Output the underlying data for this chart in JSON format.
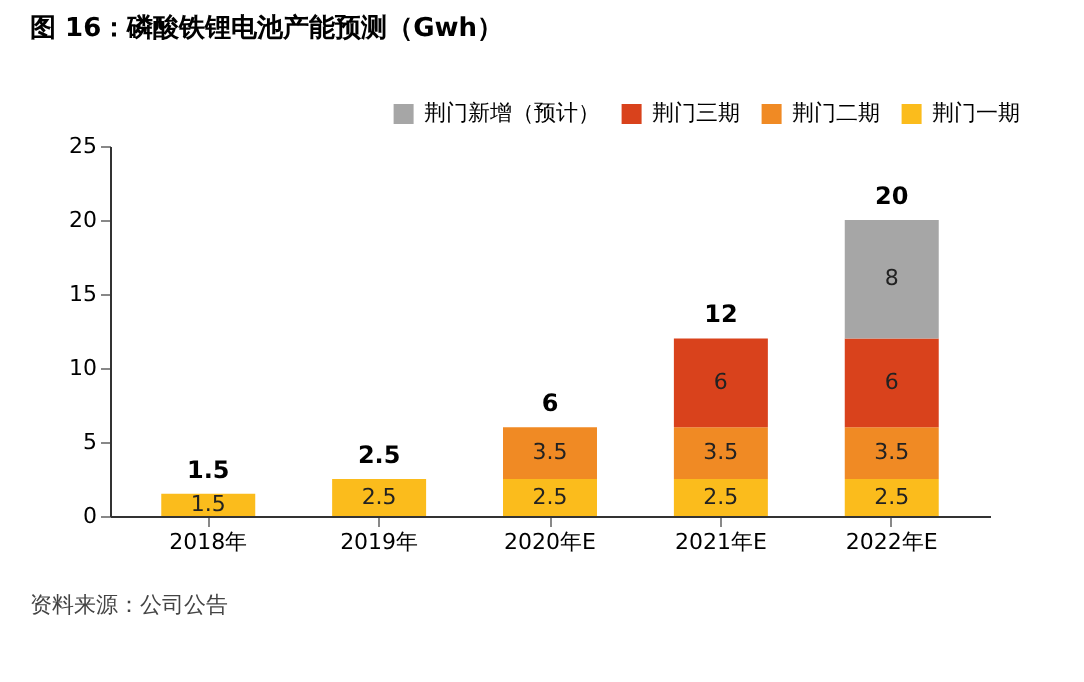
{
  "chart_data": {
    "type": "bar",
    "title": "图 16：磷酸铁锂电池产能预测（Gwh）",
    "categories": [
      "2018年",
      "2019年",
      "2020年E",
      "2021年E",
      "2022年E"
    ],
    "series": [
      {
        "name": "荆门一期",
        "color": "#fbbc1c",
        "values": [
          1.5,
          2.5,
          2.5,
          2.5,
          2.5
        ]
      },
      {
        "name": "荆门二期",
        "color": "#f08a24",
        "values": [
          null,
          null,
          3.5,
          3.5,
          3.5
        ]
      },
      {
        "name": "荆门三期",
        "color": "#d9421c",
        "values": [
          null,
          null,
          null,
          6,
          6
        ]
      },
      {
        "name": "荆门新增（预计）",
        "color": "#a6a6a6",
        "values": [
          null,
          null,
          null,
          null,
          8
        ]
      }
    ],
    "stacked": true,
    "data_labels": true,
    "totals": [
      "1.5",
      "2.5",
      "6",
      "12",
      "20"
    ],
    "ylim": [
      0,
      25
    ],
    "yticks": [
      0,
      5,
      10,
      15,
      20,
      25
    ],
    "grid": false,
    "legend": "top right",
    "annotations": [
      "资料来源：公司公告"
    ]
  }
}
